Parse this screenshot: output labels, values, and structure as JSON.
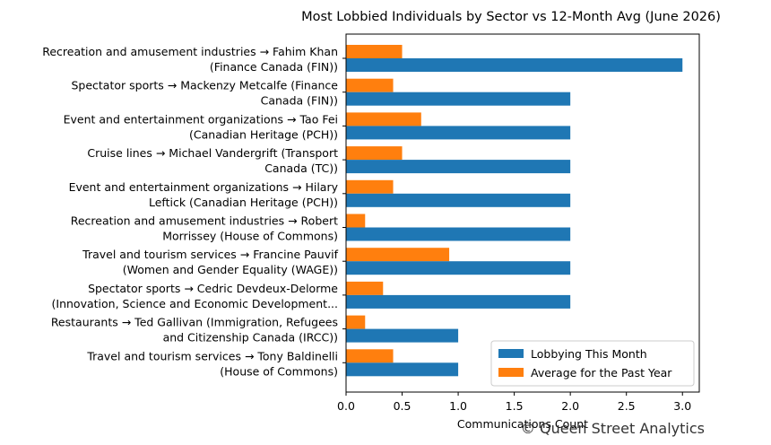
{
  "chart_data": {
    "type": "bar",
    "orientation": "horizontal",
    "title": "Most Lobbied Individuals by Sector vs 12-Month Avg (June 2026)",
    "xlabel": "Communications Count",
    "ylabel": "",
    "xlim": [
      0,
      3.15
    ],
    "xticks": [
      "0.0",
      "0.5",
      "1.0",
      "1.5",
      "2.0",
      "2.5",
      "3.0"
    ],
    "grid": false,
    "legend_position": "lower-right",
    "categories": [
      [
        "Recreation and amusement industries → Fahim Khan",
        "(Finance Canada (FIN))"
      ],
      [
        "Spectator sports → Mackenzy Metcalfe (Finance",
        "Canada (FIN))"
      ],
      [
        "Event and entertainment organizations → Tao Fei",
        "(Canadian Heritage (PCH))"
      ],
      [
        "Cruise lines → Michael Vandergrift (Transport",
        "Canada (TC))"
      ],
      [
        "Event and entertainment organizations → Hilary",
        "Leftick (Canadian Heritage (PCH))"
      ],
      [
        "Recreation and amusement industries → Robert",
        "Morrissey (House of Commons)"
      ],
      [
        "Travel and tourism services → Francine Pauvif",
        "(Women and Gender Equality (WAGE))"
      ],
      [
        "Spectator sports → Cedric Devdeux-Delorme",
        "(Innovation, Science and Economic Development..."
      ],
      [
        "Restaurants → Ted Gallivan (Immigration, Refugees",
        "and Citizenship Canada (IRCC))"
      ],
      [
        "Travel and tourism services → Tony Baldinelli",
        "(House of Commons)"
      ]
    ],
    "series": [
      {
        "name": "Lobbying This Month",
        "color": "#1f77b4",
        "values": [
          3,
          2,
          2,
          2,
          2,
          2,
          2,
          2,
          1,
          1
        ]
      },
      {
        "name": "Average for the Past Year",
        "color": "#ff7f0e",
        "values": [
          0.5,
          0.42,
          0.67,
          0.5,
          0.42,
          0.17,
          0.92,
          0.33,
          0.17,
          0.42
        ]
      }
    ]
  },
  "watermark": "© Queen Street Analytics"
}
